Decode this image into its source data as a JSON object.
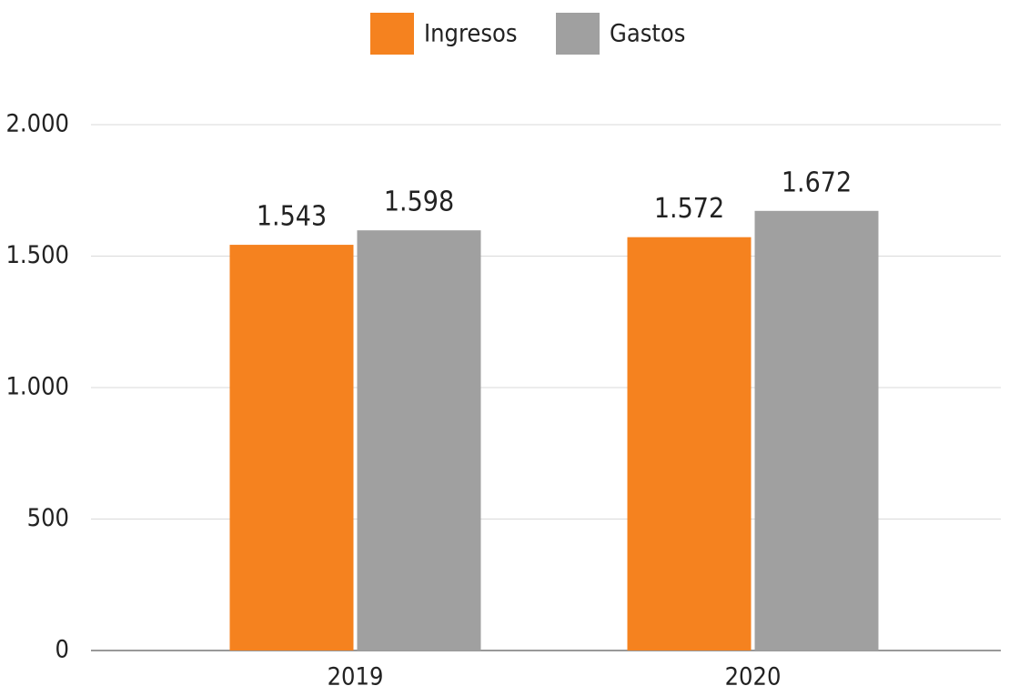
{
  "chart_data": {
    "type": "bar",
    "categories": [
      "2019",
      "2020"
    ],
    "series": [
      {
        "name": "Ingresos",
        "color": "#f5821f",
        "values": [
          1543,
          1572
        ],
        "value_labels": [
          "1.543",
          "1.572"
        ]
      },
      {
        "name": "Gastos",
        "color": "#a0a0a0",
        "values": [
          1598,
          1672
        ],
        "value_labels": [
          "1.598",
          "1.672"
        ]
      }
    ],
    "ylim": [
      0,
      2000
    ],
    "yticks": [
      0,
      500,
      {
        "value": 1000,
        "label": "1.000"
      },
      {
        "value": 1500,
        "label": "1.500"
      },
      {
        "value": 2000,
        "label": "2.000"
      }
    ],
    "grid": true,
    "legend": "top"
  }
}
